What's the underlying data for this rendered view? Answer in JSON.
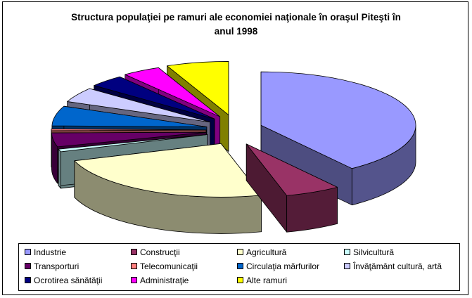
{
  "chart_data": {
    "type": "pie",
    "title_lines": [
      "Structura populaţiei pe ramuri ale economiei naţionale în oraşul Piteşti în",
      "anul 1998"
    ],
    "slices": [
      {
        "label": "Industrie",
        "value": 40.0,
        "color": "#9999ff"
      },
      {
        "label": "Construcţii",
        "value": 5.8,
        "color": "#993366"
      },
      {
        "label": "Agricultură",
        "value": 24.0,
        "color": "#ffffcc"
      },
      {
        "label": "Silvicultură",
        "value": 0.8,
        "color": "#ccffff"
      },
      {
        "label": "Transporturi",
        "value": 4.2,
        "color": "#660066"
      },
      {
        "label": "Telecomunicaţii",
        "value": 0.5,
        "color": "#ff8080"
      },
      {
        "label": "Circulaţia mărfurilor",
        "value": 6.0,
        "color": "#0066cc"
      },
      {
        "label": "Învăţământ cultură, artă",
        "value": 4.5,
        "color": "#ccccff"
      },
      {
        "label": "Ocrotirea sănătăţii",
        "value": 3.7,
        "color": "#000080"
      },
      {
        "label": "Administraţie",
        "value": 4.0,
        "color": "#ff00ff"
      },
      {
        "label": "Alte ramuri",
        "value": 6.5,
        "color": "#ffff00"
      }
    ],
    "legend_position": "bottom",
    "exploded": true,
    "three_d": true
  }
}
